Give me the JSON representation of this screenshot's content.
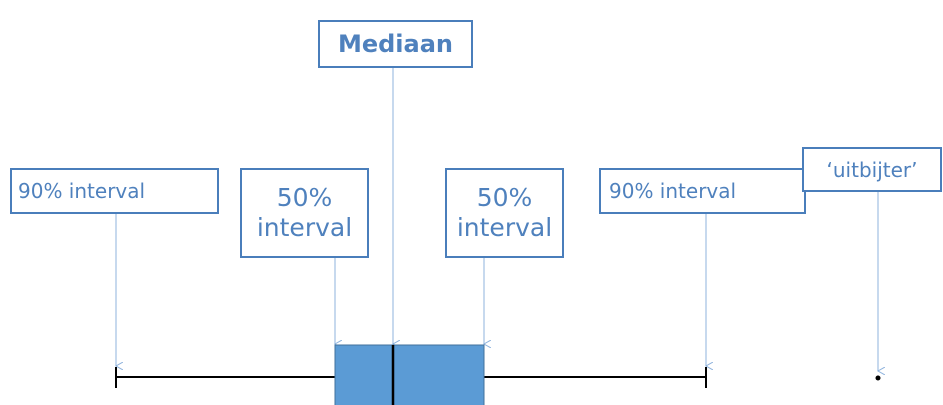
{
  "labels": {
    "median": "Mediaan",
    "left_90": "90% interval",
    "left_50": "50% interval",
    "right_50": "50% interval",
    "right_90": "90% interval",
    "outlier": "‘uitbijter’"
  }
}
